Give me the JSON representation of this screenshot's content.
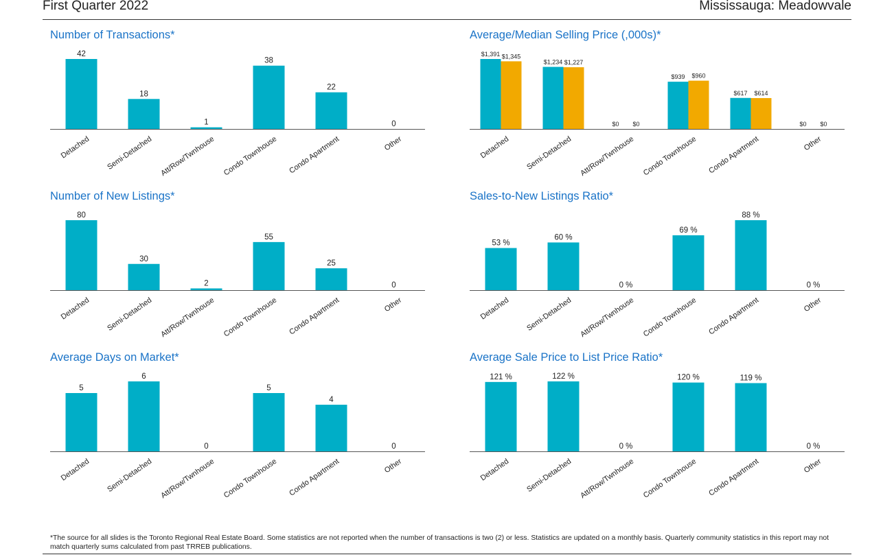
{
  "header": {
    "period": "First Quarter 2022",
    "location": "Mississauga: Meadowvale"
  },
  "footnote": "*The source for all slides is the Toronto Regional Real Estate Board. Some statistics are not reported when the number of transactions is two (2) or less. Statistics are updated on a monthly basis. Quarterly community statistics in this report may not match quarterly sums calculated from past TRREB publications.",
  "colors": {
    "teal": "#00aec7",
    "orange": "#f2a900",
    "title": "#1a73c7",
    "axis": "#555555"
  },
  "chart_data": [
    {
      "id": "transactions",
      "type": "bar",
      "title": "Number of Transactions*",
      "categories": [
        "Detached",
        "Semi-Detached",
        "Att/Row/Twnhouse",
        "Condo Townhouse",
        "Condo Apartment",
        "Other"
      ],
      "series": [
        {
          "values": [
            42,
            18,
            1,
            38,
            22,
            0
          ]
        }
      ],
      "labels": [
        [
          "42",
          "18",
          "1",
          "38",
          "22",
          "0"
        ]
      ],
      "ylim": [
        0,
        42
      ]
    },
    {
      "id": "price",
      "type": "bar",
      "title": "Average/Median Selling Price (,000s)*",
      "categories": [
        "Detached",
        "Semi-Detached",
        "Att/Row/Twnhouse",
        "Condo Townhouse",
        "Condo Apartment",
        "Other"
      ],
      "series": [
        {
          "values": [
            1391,
            1234,
            0,
            939,
            617,
            0
          ]
        },
        {
          "values": [
            1345,
            1227,
            0,
            960,
            614,
            0
          ]
        }
      ],
      "labels": [
        [
          "$1,391",
          "$1,234",
          "$0",
          "$939",
          "$617",
          "$0"
        ],
        [
          "$1,345",
          "$1,227",
          "$0",
          "$960",
          "$614",
          "$0"
        ]
      ],
      "ylim": [
        0,
        1391
      ]
    },
    {
      "id": "listings",
      "type": "bar",
      "title": "Number of New Listings*",
      "categories": [
        "Detached",
        "Semi-Detached",
        "Att/Row/Twnhouse",
        "Condo Townhouse",
        "Condo Apartment",
        "Other"
      ],
      "series": [
        {
          "values": [
            80,
            30,
            2,
            55,
            25,
            0
          ]
        }
      ],
      "labels": [
        [
          "80",
          "30",
          "2",
          "55",
          "25",
          "0"
        ]
      ],
      "ylim": [
        0,
        80
      ]
    },
    {
      "id": "snlr",
      "type": "bar",
      "title": "Sales-to-New Listings Ratio*",
      "categories": [
        "Detached",
        "Semi-Detached",
        "Att/Row/Twnhouse",
        "Condo Townhouse",
        "Condo Apartment",
        "Other"
      ],
      "series": [
        {
          "values": [
            53,
            60,
            0,
            69,
            88,
            0
          ]
        }
      ],
      "labels": [
        [
          "53 %",
          "60 %",
          "0 %",
          "69 %",
          "88 %",
          "0 %"
        ]
      ],
      "ylim": [
        0,
        88
      ]
    },
    {
      "id": "dom",
      "type": "bar",
      "title": "Average Days on Market*",
      "categories": [
        "Detached",
        "Semi-Detached",
        "Att/Row/Twnhouse",
        "Condo Townhouse",
        "Condo Apartment",
        "Other"
      ],
      "series": [
        {
          "values": [
            5,
            6,
            0,
            5,
            4,
            0
          ]
        }
      ],
      "labels": [
        [
          "5",
          "6",
          "0",
          "5",
          "4",
          "0"
        ]
      ],
      "ylim": [
        0,
        6
      ]
    },
    {
      "id": "splp",
      "type": "bar",
      "title": "Average Sale Price to List Price Ratio*",
      "categories": [
        "Detached",
        "Semi-Detached",
        "Att/Row/Twnhouse",
        "Condo Townhouse",
        "Condo Apartment",
        "Other"
      ],
      "series": [
        {
          "values": [
            121,
            122,
            0,
            120,
            119,
            0
          ]
        }
      ],
      "labels": [
        [
          "121 %",
          "122 %",
          "0 %",
          "120 %",
          "119 %",
          "0 %"
        ]
      ],
      "ylim": [
        0,
        122
      ]
    }
  ]
}
